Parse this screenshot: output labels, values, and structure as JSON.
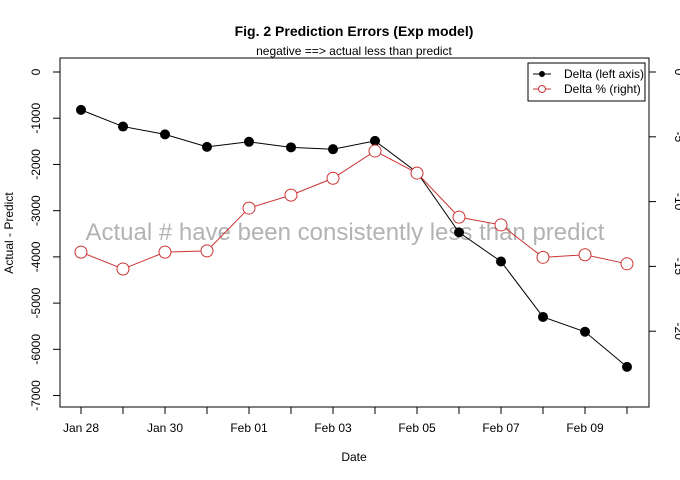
{
  "chart_data": {
    "type": "line",
    "title": "Fig. 2 Prediction Errors (Exp model)",
    "subtitle": "negative ==> actual less than predict",
    "xlabel": "Date",
    "ylabel": "Actual - Predict",
    "y2label": "",
    "annotation": "Actual # have been consistently less than predict",
    "x": [
      "Jan 28",
      "Jan 29",
      "Jan 30",
      "Jan 31",
      "Feb 01",
      "Feb 02",
      "Feb 03",
      "Feb 04",
      "Feb 05",
      "Feb 06",
      "Feb 07",
      "Feb 08",
      "Feb 09",
      "Feb 10"
    ],
    "x_tick_labels": [
      "Jan 28",
      "Jan 30",
      "Feb 01",
      "Feb 03",
      "Feb 05",
      "Feb 07",
      "Feb 09"
    ],
    "ylim": [
      -7000,
      0
    ],
    "y_ticks": [
      0,
      -1000,
      -2000,
      -3000,
      -4000,
      -5000,
      -6000,
      -7000
    ],
    "y2lim": [
      -20,
      0
    ],
    "y2_ticks": [
      0,
      -5,
      -10,
      -15,
      -20
    ],
    "series": [
      {
        "name": "Delta (left axis)",
        "axis": "left",
        "color": "#000000",
        "marker": "filled-circle",
        "values": [
          -820,
          -1180,
          -1350,
          -1620,
          -1510,
          -1630,
          -1670,
          -1490,
          -2170,
          -3470,
          -4100,
          -5300,
          -5620,
          -6380
        ]
      },
      {
        "name": "Delta % (right)",
        "axis": "right",
        "color": "#cc3333",
        "marker": "open-circle",
        "values": [
          -13.9,
          -15.2,
          -13.9,
          -13.8,
          -10.5,
          -9.5,
          -8.2,
          -6.1,
          -7.8,
          -11.2,
          -11.8,
          -14.3,
          -14.1,
          -14.8
        ]
      }
    ],
    "legend_position": "top-right",
    "grid": false
  }
}
